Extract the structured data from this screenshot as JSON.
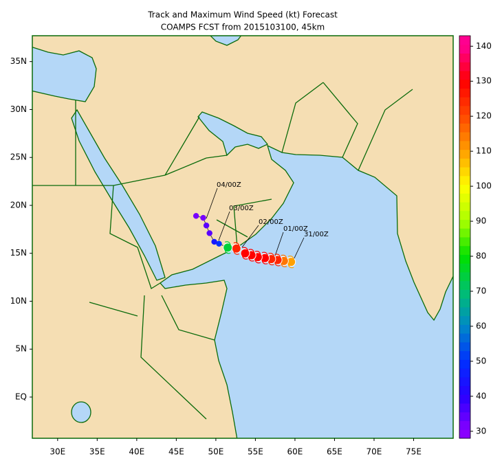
{
  "chart_data": {
    "type": "track-map",
    "title": "Track and Maximum Wind Speed (kt) Forecast",
    "subtitle": "COAMPS FCST from 2015103100, 45km",
    "xlim": [
      26.8,
      80
    ],
    "ylim": [
      -4.3,
      37.7
    ],
    "xticks": [
      {
        "value": 30,
        "label": "30E"
      },
      {
        "value": 35,
        "label": "35E"
      },
      {
        "value": 40,
        "label": "40E"
      },
      {
        "value": 45,
        "label": "45E"
      },
      {
        "value": 50,
        "label": "50E"
      },
      {
        "value": 55,
        "label": "55E"
      },
      {
        "value": 60,
        "label": "60E"
      },
      {
        "value": 65,
        "label": "65E"
      },
      {
        "value": 70,
        "label": "70E"
      },
      {
        "value": 75,
        "label": "75E"
      }
    ],
    "yticks": [
      {
        "value": 0,
        "label": "EQ"
      },
      {
        "value": 5,
        "label": "5N"
      },
      {
        "value": 10,
        "label": "10N"
      },
      {
        "value": 15,
        "label": "15N"
      },
      {
        "value": 20,
        "label": "20N"
      },
      {
        "value": 25,
        "label": "25N"
      },
      {
        "value": 30,
        "label": "30N"
      },
      {
        "value": 35,
        "label": "35N"
      }
    ],
    "colorbar": {
      "lim": [
        28,
        143
      ],
      "ticks": [
        30,
        40,
        50,
        60,
        70,
        80,
        90,
        100,
        110,
        120,
        130,
        140
      ],
      "colors": [
        "#8a00ff",
        "#2a00ff",
        "#0030ff",
        "#0088c8",
        "#00c070",
        "#00e000",
        "#a8ff00",
        "#ffff00",
        "#ffa000",
        "#ff4a00",
        "#ff0000",
        "#ff0090"
      ]
    },
    "track": {
      "lon": [
        59.5,
        58.6,
        57.8,
        57.0,
        56.2,
        55.3,
        54.5,
        53.7,
        52.6,
        51.5,
        50.4,
        49.8,
        49.2,
        48.8,
        48.4,
        47.5
      ],
      "lat": [
        14.1,
        14.2,
        14.3,
        14.4,
        14.5,
        14.6,
        14.8,
        15.0,
        15.5,
        15.6,
        16.0,
        16.2,
        17.1,
        17.9,
        18.7,
        18.9
      ],
      "wind": [
        110,
        115,
        125,
        125,
        130,
        130,
        130,
        130,
        125,
        75,
        50,
        45,
        35,
        35,
        32,
        32
      ]
    },
    "track_labels": [
      "31/00Z",
      "01/00Z",
      "02/00Z",
      "03/00Z",
      "04/00Z"
    ]
  }
}
